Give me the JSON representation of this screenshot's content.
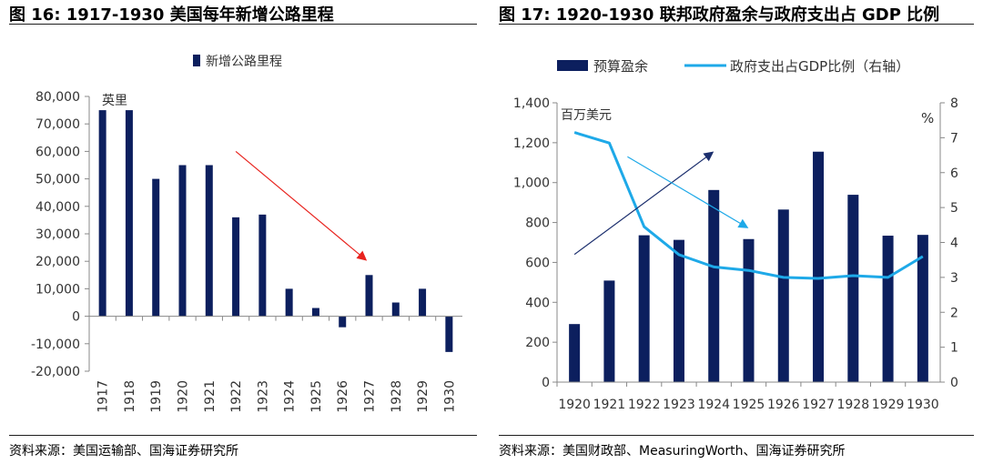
{
  "figures": {
    "left": {
      "title": "图 16: 1917-1930 美国每年新增公路里程",
      "source": "资料来源：美国运输部、国海证券研究所"
    },
    "right": {
      "title": "图 17: 1920-1930 联邦政府盈余与政府支出占 GDP 比例",
      "source": "资料来源：美国财政部、MeasuringWorth、国海证券研究所"
    }
  },
  "colors": {
    "bar": "#0c1f5e",
    "line": "#1ea9e8",
    "arrow_red": "#e8231e",
    "arrow_navy": "#1c2f6e",
    "arrow_cyan": "#1ea9e8"
  },
  "chart_data": [
    {
      "type": "bar",
      "categories": [
        "1917",
        "1918",
        "1919",
        "1920",
        "1921",
        "1922",
        "1923",
        "1924",
        "1925",
        "1926",
        "1927",
        "1928",
        "1929",
        "1930"
      ],
      "series": [
        {
          "name": "新增公路里程",
          "values": [
            75000,
            75000,
            50000,
            55000,
            55000,
            36000,
            37000,
            10000,
            3000,
            -4000,
            15000,
            5000,
            10000,
            -13000
          ]
        }
      ],
      "unit_label": "英里",
      "ylim": [
        -20000,
        80000
      ],
      "yticks": [
        -20000,
        -10000,
        0,
        10000,
        20000,
        30000,
        40000,
        50000,
        60000,
        70000,
        80000
      ],
      "ytick_labels": [
        "-20,000",
        "-10,000",
        "0",
        "10,000",
        "20,000",
        "30,000",
        "40,000",
        "50,000",
        "60,000",
        "70,000",
        "80,000"
      ],
      "legend": "top",
      "grid": false,
      "annotations": [
        {
          "type": "arrow",
          "color": "red",
          "from": [
            "1922",
            60000
          ],
          "to": [
            "1927",
            20000
          ]
        }
      ]
    },
    {
      "type": "bar",
      "categories": [
        "1920",
        "1921",
        "1922",
        "1923",
        "1924",
        "1925",
        "1926",
        "1927",
        "1928",
        "1929",
        "1930"
      ],
      "series": [
        {
          "name": "预算盈余",
          "type": "bar",
          "axis": "left",
          "values": [
            291,
            509,
            736,
            713,
            963,
            717,
            865,
            1155,
            939,
            734,
            738
          ]
        },
        {
          "name": "政府支出占GDP比例（右轴）",
          "type": "line",
          "axis": "right",
          "values": [
            7.15,
            6.85,
            4.45,
            3.65,
            3.3,
            3.2,
            3.0,
            2.97,
            3.05,
            3.0,
            3.6
          ]
        }
      ],
      "left_unit": "百万美元",
      "right_unit": "%",
      "ylim": [
        0,
        1400
      ],
      "yticks": [
        0,
        200,
        400,
        600,
        800,
        1000,
        1200,
        1400
      ],
      "ytick_labels": [
        "0",
        "200",
        "400",
        "600",
        "800",
        "1,000",
        "1,200",
        "1,400"
      ],
      "y2lim": [
        0,
        8
      ],
      "y2ticks": [
        0,
        1,
        2,
        3,
        4,
        5,
        6,
        7,
        8
      ],
      "y2tick_labels": [
        "0",
        "1",
        "2",
        "3",
        "4",
        "5",
        "6",
        "7",
        "8"
      ],
      "legend": "top",
      "grid": false,
      "annotations": [
        {
          "type": "arrow",
          "color": "navy",
          "from": [
            "1920",
            640
          ],
          "to": [
            "1925",
            1150
          ]
        },
        {
          "type": "arrow",
          "color": "cyan",
          "from": [
            "1921",
            1130
          ],
          "to": [
            "1925",
            740
          ]
        }
      ]
    }
  ]
}
